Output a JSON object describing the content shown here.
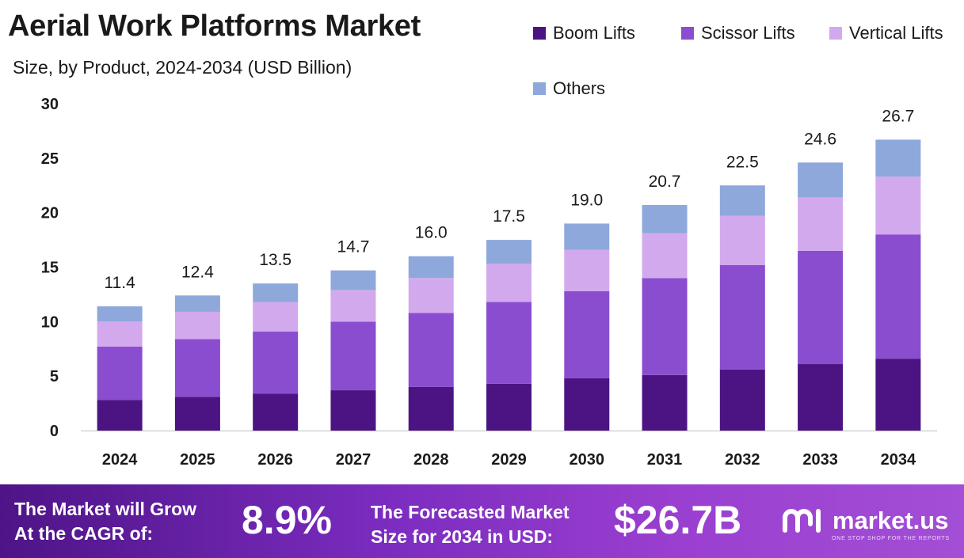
{
  "header": {
    "title": "Aerial Work Platforms Market",
    "subtitle": "Size, by Product, 2024-2034 (USD Billion)"
  },
  "colors": {
    "boom": "#4b1482",
    "scissor": "#8a4dd0",
    "vertical": "#d3a9ee",
    "others": "#8ea8dc"
  },
  "chart_data": {
    "type": "bar",
    "stacked": true,
    "title": "Aerial Work Platforms Market",
    "subtitle": "Size, by Product, 2024-2034 (USD Billion)",
    "categories": [
      "2024",
      "2025",
      "2026",
      "2027",
      "2028",
      "2029",
      "2030",
      "2031",
      "2032",
      "2033",
      "2034"
    ],
    "series": [
      {
        "name": "Boom Lifts",
        "values": [
          2.8,
          3.1,
          3.4,
          3.7,
          4.0,
          4.3,
          4.8,
          5.1,
          5.6,
          6.1,
          6.6
        ]
      },
      {
        "name": "Scissor Lifts",
        "values": [
          4.9,
          5.3,
          5.7,
          6.3,
          6.8,
          7.5,
          8.0,
          8.9,
          9.6,
          10.4,
          11.4
        ]
      },
      {
        "name": "Vertical Lifts",
        "values": [
          2.3,
          2.5,
          2.7,
          2.9,
          3.2,
          3.5,
          3.8,
          4.1,
          4.5,
          4.9,
          5.3
        ]
      },
      {
        "name": "Others",
        "values": [
          1.4,
          1.5,
          1.7,
          1.8,
          2.0,
          2.2,
          2.4,
          2.6,
          2.8,
          3.2,
          3.4
        ]
      }
    ],
    "totals": [
      "11.4",
      "12.4",
      "13.5",
      "14.7",
      "16.0",
      "17.5",
      "19.0",
      "20.7",
      "22.5",
      "24.6",
      "26.7"
    ],
    "yticks": [
      "0",
      "5",
      "10",
      "15",
      "20",
      "25",
      "30"
    ],
    "ylim": [
      0,
      30
    ],
    "xlabel": "",
    "ylabel": "",
    "grid": false,
    "legend_position": "top-right"
  },
  "banner": {
    "cagr_label_line1": "The Market will Grow",
    "cagr_label_line2": "At the CAGR of:",
    "cagr_value": "8.9%",
    "forecast_label_line1": "The Forecasted Market",
    "forecast_label_line2": "Size for 2034 in USD:",
    "forecast_value": "$26.7B",
    "logo_text": "market.us",
    "logo_tagline": "ONE STOP SHOP FOR THE REPORTS"
  }
}
